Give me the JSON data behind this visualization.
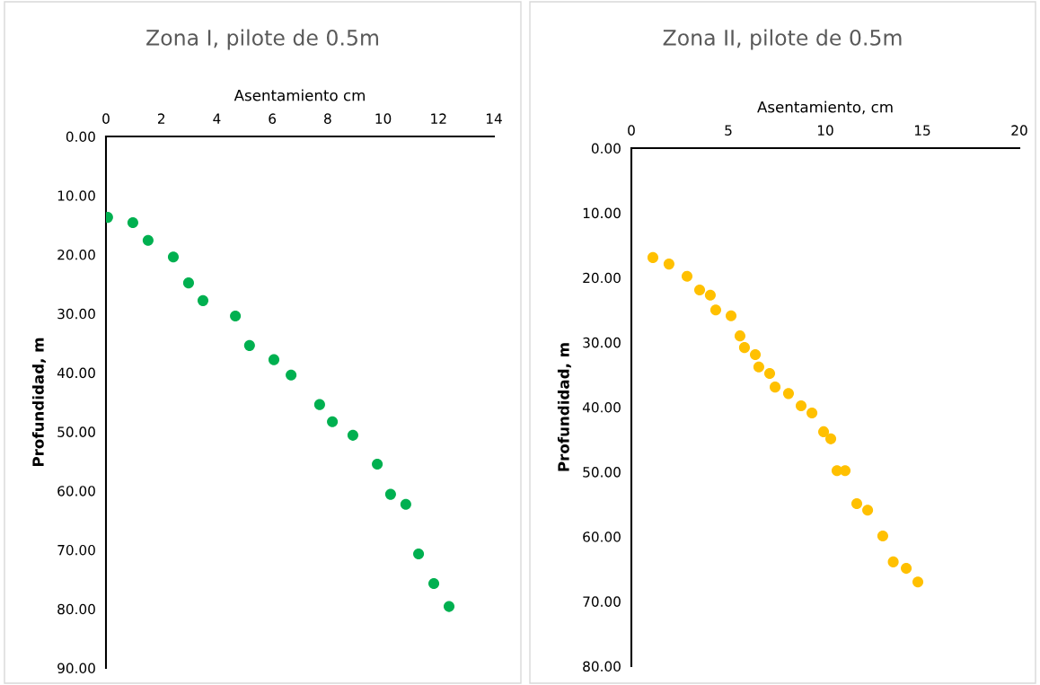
{
  "chart_data": [
    {
      "type": "scatter",
      "title": "Zona I, pilote de 0.5m",
      "xlabel": "Asentamiento cm",
      "ylabel": "Profundidad, m",
      "marker": "circle",
      "grid": false,
      "legend": false,
      "xlim": [
        0,
        14
      ],
      "xticks": [
        0,
        2,
        4,
        6,
        8,
        10,
        12,
        14
      ],
      "ylim": [
        90,
        0
      ],
      "yticks": [
        {
          "value": 0,
          "label": "0.00"
        },
        {
          "value": 10,
          "label": "10.00"
        },
        {
          "value": 20,
          "label": "20.00"
        },
        {
          "value": 30,
          "label": "30.00"
        },
        {
          "value": 40,
          "label": "40.00"
        },
        {
          "value": 50,
          "label": "50.00"
        },
        {
          "value": 60,
          "label": "60.00"
        },
        {
          "value": 70,
          "label": "70.00"
        },
        {
          "value": 80,
          "label": "80.00"
        },
        {
          "value": 90,
          "label": "90.00"
        }
      ],
      "series": [
        {
          "color": "#00b050",
          "x": [
            0.06,
            0.97,
            1.52,
            2.43,
            2.98,
            3.5,
            4.67,
            5.18,
            6.06,
            6.68,
            7.71,
            8.17,
            8.91,
            9.79,
            10.27,
            10.82,
            11.28,
            11.83,
            12.38
          ],
          "values": [
            13.7,
            14.6,
            17.6,
            20.4,
            24.8,
            27.8,
            30.4,
            35.4,
            37.8,
            40.4,
            45.4,
            48.3,
            50.6,
            55.5,
            60.6,
            62.3,
            70.7,
            75.7,
            79.6
          ]
        }
      ]
    },
    {
      "type": "scatter",
      "title": "Zona II, pilote de 0.5m",
      "xlabel": "Asentamiento, cm",
      "ylabel": "Profundidad, m",
      "marker": "circle",
      "grid": false,
      "legend": false,
      "xlim": [
        0,
        20
      ],
      "xticks": [
        0,
        5,
        10,
        15,
        20
      ],
      "ylim": [
        80,
        0
      ],
      "yticks": [
        {
          "value": 0,
          "label": "0.00"
        },
        {
          "value": 10,
          "label": "10.00"
        },
        {
          "value": 20,
          "label": "20.00"
        },
        {
          "value": 30,
          "label": "30.00"
        },
        {
          "value": 40,
          "label": "40.00"
        },
        {
          "value": 50,
          "label": "50.00"
        },
        {
          "value": 60,
          "label": "60.00"
        },
        {
          "value": 70,
          "label": "70.00"
        },
        {
          "value": 80,
          "label": "80.00"
        }
      ],
      "series": [
        {
          "color": "#ffc000",
          "x": [
            1.11,
            1.94,
            2.87,
            3.52,
            4.07,
            4.35,
            5.14,
            5.6,
            5.83,
            6.39,
            6.57,
            7.13,
            7.41,
            8.1,
            8.75,
            9.31,
            9.91,
            10.28,
            10.6,
            11.02,
            11.62,
            12.18,
            12.96,
            13.5,
            14.17,
            14.77
          ],
          "values": [
            16.9,
            17.9,
            19.8,
            21.9,
            22.7,
            25.0,
            25.9,
            29.0,
            30.8,
            31.9,
            33.8,
            34.8,
            36.9,
            37.9,
            39.8,
            40.9,
            43.8,
            44.9,
            49.8,
            49.8,
            54.9,
            55.9,
            59.9,
            63.9,
            64.9,
            67.0
          ]
        }
      ]
    }
  ]
}
